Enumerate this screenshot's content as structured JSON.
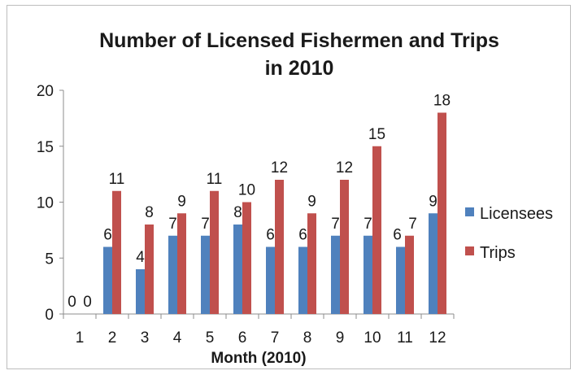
{
  "chart_data": {
    "type": "bar",
    "title_lines": [
      "Number of Licensed Fishermen and Trips",
      "in 2010"
    ],
    "xlabel": "Month (2010)",
    "ylabel": "",
    "categories": [
      "1",
      "2",
      "3",
      "4",
      "5",
      "6",
      "7",
      "8",
      "9",
      "10",
      "11",
      "12"
    ],
    "series": [
      {
        "name": "Licensees",
        "color": "#4f81bd",
        "values": [
          0,
          6,
          4,
          7,
          7,
          8,
          6,
          6,
          7,
          7,
          6,
          9
        ]
      },
      {
        "name": "Trips",
        "color": "#c0504d",
        "values": [
          0,
          11,
          8,
          9,
          11,
          10,
          12,
          9,
          12,
          15,
          7,
          18
        ]
      }
    ],
    "ylim": [
      0,
      20
    ],
    "yticks": [
      0,
      5,
      10,
      15,
      20
    ],
    "data_labels": true,
    "grid": false,
    "legend_position": "right"
  }
}
